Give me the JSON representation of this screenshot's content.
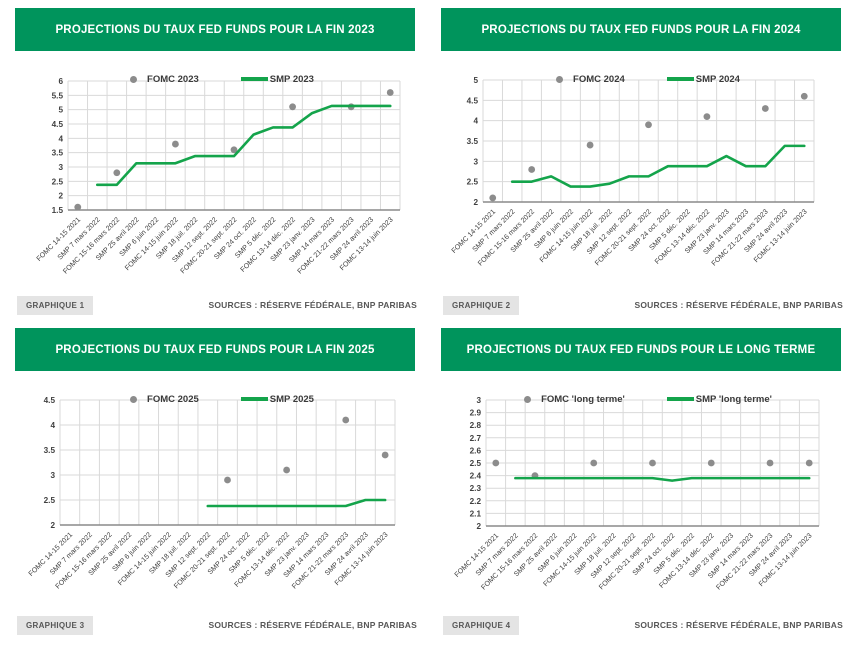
{
  "sources_label": "SOURCES : RÉSERVE FÉDÉRALE, BNP PARIBAS",
  "colors": {
    "banner_green": "#00945c",
    "line_green": "#14a44b",
    "dot_gray": "#8c8c8c",
    "grid_gray": "#d9d9d9",
    "axis_gray": "#8a8a8a",
    "tick_text": "#3f3f3f"
  },
  "chart_data": [
    {
      "type": "line",
      "title": "PROJECTIONS DU TAUX FED FUNDS POUR LA FIN 2023",
      "badge": "GRAPHIQUE 1",
      "sources": "SOURCES : RÉSERVE FÉDÉRALE, BNP PARIBAS",
      "legend_position": "top-center",
      "grid": true,
      "ylim": [
        1.5,
        6
      ],
      "ytick_step": 0.5,
      "categories": [
        "FOMC 14-15 2021",
        "SMP 7 mars 2022",
        "FOMC 15-16 mars 2022",
        "SMP 25 avril 2022",
        "SMP 6 juin 2022",
        "FOMC 14-15 juin 2022",
        "SMP 18 juil. 2022",
        "SMP 12 sept. 2022",
        "FOMC 20-21 sept. 2022",
        "SMP 24 oct. 2022",
        "SMP 5 déc. 2022",
        "FOMC 13-14 déc. 2022",
        "SMP 23 janv. 2023",
        "SMP 14 mars 2023",
        "FOMC 21-22 mars 2023",
        "SMP 24 avril 2023",
        "FOMC 13-14 juin 2023"
      ],
      "series": [
        {
          "name": "FOMC 2023",
          "type": "scatter",
          "values": [
            1.6,
            null,
            2.8,
            null,
            null,
            3.8,
            null,
            null,
            3.6,
            null,
            null,
            5.1,
            null,
            null,
            5.1,
            null,
            5.6
          ]
        },
        {
          "name": "SMP 2023",
          "type": "line",
          "values": [
            null,
            2.38,
            2.38,
            3.13,
            3.13,
            3.13,
            3.38,
            3.38,
            3.38,
            4.13,
            4.38,
            4.38,
            4.88,
            5.13,
            5.13,
            5.13,
            5.13
          ]
        }
      ]
    },
    {
      "type": "line",
      "title": "PROJECTIONS DU TAUX FED FUNDS POUR LA FIN 2024",
      "badge": "GRAPHIQUE 2",
      "sources": "SOURCES : RÉSERVE FÉDÉRALE, BNP PARIBAS",
      "legend_position": "top-center",
      "grid": true,
      "ylim": [
        2,
        5
      ],
      "ytick_step": 0.5,
      "categories": [
        "FOMC 14-15 2021",
        "SMP 7 mars 2022",
        "FOMC 15-16 mars 2022",
        "SMP 25 avril 2022",
        "SMP 6 juin 2022",
        "FOMC 14-15 juin 2022",
        "SMP 18 juil. 2022",
        "SMP 12 sept. 2022",
        "FOMC 20-21 sept. 2022",
        "SMP 24 oct. 2022",
        "SMP 5 déc. 2022",
        "FOMC 13-14 déc. 2022",
        "SMP 23 janv. 2023",
        "SMP 14 mars 2023",
        "FOMC 21-22 mars 2023",
        "SMP 24 avril 2023",
        "FOMC 13-14 juin 2023"
      ],
      "series": [
        {
          "name": "FOMC 2024",
          "type": "scatter",
          "values": [
            2.1,
            null,
            2.8,
            null,
            null,
            3.4,
            null,
            null,
            3.9,
            null,
            null,
            4.1,
            null,
            null,
            4.3,
            null,
            4.6
          ]
        },
        {
          "name": "SMP 2024",
          "type": "line",
          "values": [
            null,
            2.5,
            2.5,
            2.63,
            2.38,
            2.38,
            2.45,
            2.63,
            2.63,
            2.88,
            2.88,
            2.88,
            3.13,
            2.88,
            2.88,
            3.38,
            3.38
          ]
        }
      ]
    },
    {
      "type": "line",
      "title": "PROJECTIONS DU TAUX FED FUNDS POUR LA FIN 2025",
      "badge": "GRAPHIQUE 3",
      "sources": "SOURCES : RÉSERVE FÉDÉRALE, BNP PARIBAS",
      "legend_position": "top-center",
      "grid": true,
      "ylim": [
        2,
        4.5
      ],
      "ytick_step": 0.5,
      "categories": [
        "FOMC 14-15 2021",
        "SMP 7 mars 2022",
        "FOMC 15-16 mars 2022",
        "SMP 25 avril 2022",
        "SMP 6 juin 2022",
        "FOMC 14-15 juin 2022",
        "SMP 18 juil. 2022",
        "SMP 12 sept. 2022",
        "FOMC 20-21 sept. 2022",
        "SMP 24 oct. 2022",
        "SMP 5 déc. 2022",
        "FOMC 13-14 déc. 2022",
        "SMP 23 janv. 2023",
        "SMP 14 mars 2023",
        "FOMC 21-22 mars 2023",
        "SMP 24 avril 2023",
        "FOMC 13-14 juin 2023"
      ],
      "series": [
        {
          "name": "FOMC 2025",
          "type": "scatter",
          "values": [
            null,
            null,
            null,
            null,
            null,
            null,
            null,
            null,
            2.9,
            null,
            null,
            3.1,
            null,
            null,
            4.1,
            null,
            3.4
          ]
        },
        {
          "name": "SMP 2025",
          "type": "line",
          "values": [
            null,
            null,
            null,
            null,
            null,
            null,
            null,
            2.38,
            2.38,
            2.38,
            2.38,
            2.38,
            2.38,
            2.38,
            2.38,
            2.5,
            2.5
          ]
        }
      ]
    },
    {
      "type": "line",
      "title": "PROJECTIONS DU TAUX FED FUNDS POUR LE LONG TERME",
      "badge": "GRAPHIQUE 4",
      "sources": "SOURCES : RÉSERVE FÉDÉRALE, BNP PARIBAS",
      "legend_position": "top-center",
      "grid": true,
      "ylim": [
        2,
        3
      ],
      "ytick_step": 0.1,
      "categories": [
        "FOMC 14-15 2021",
        "SMP 7 mars 2022",
        "FOMC 15-16 mars 2022",
        "SMP 25 avril 2022",
        "SMP 6 juin 2022",
        "FOMC 14-15 juin 2022",
        "SMP 18 juil. 2022",
        "SMP 12 sept. 2022",
        "FOMC 20-21 sept. 2022",
        "SMP 24 oct. 2022",
        "SMP 5 déc. 2022",
        "FOMC 13-14 déc. 2022",
        "SMP 23 janv. 2023",
        "SMP 14 mars 2023",
        "FOMC 21-22 mars 2023",
        "SMP 24 avril 2023",
        "FOMC 13-14 juin 2023"
      ],
      "series": [
        {
          "name": "FOMC 'long terme'",
          "type": "scatter",
          "values": [
            2.5,
            null,
            2.4,
            null,
            null,
            2.5,
            null,
            null,
            2.5,
            null,
            null,
            2.5,
            null,
            null,
            2.5,
            null,
            2.5
          ]
        },
        {
          "name": "SMP 'long terme'",
          "type": "line",
          "values": [
            null,
            2.38,
            2.38,
            2.38,
            2.38,
            2.38,
            2.38,
            2.38,
            2.38,
            2.36,
            2.38,
            2.38,
            2.38,
            2.38,
            2.38,
            2.38,
            2.38
          ]
        }
      ]
    }
  ]
}
